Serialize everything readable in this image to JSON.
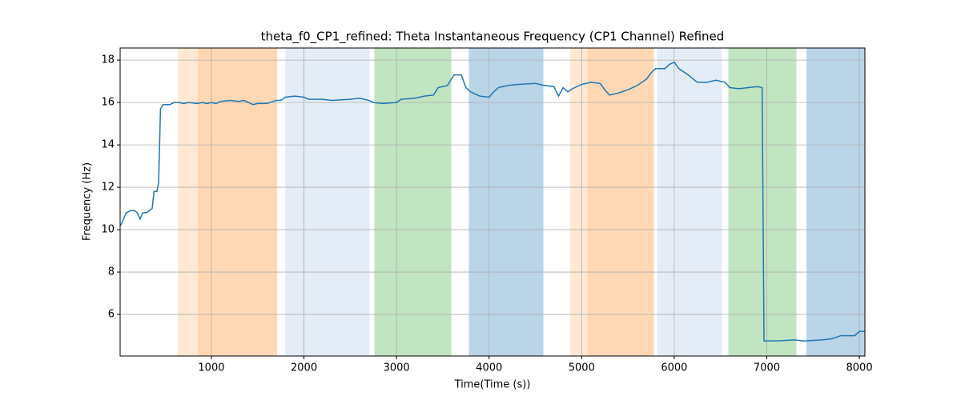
{
  "chart_data": {
    "type": "line",
    "title": "theta_f0_CP1_refined: Theta Instantaneous Frequency (CP1 Channel) Refined",
    "xlabel": "Time(Time (s))",
    "ylabel": "Frequency (Hz)",
    "xlim": [
      14,
      8060
    ],
    "ylim": [
      4.04,
      18.57
    ],
    "xticks": [
      1000,
      2000,
      3000,
      4000,
      5000,
      6000,
      7000,
      8000
    ],
    "yticks": [
      6,
      8,
      10,
      12,
      14,
      16,
      18
    ],
    "grid": true,
    "spans": [
      {
        "start": 637,
        "end": 853,
        "color": "#fee8d3"
      },
      {
        "start": 853,
        "end": 1710,
        "color": "#fed8b4"
      },
      {
        "start": 1800,
        "end": 2709,
        "color": "#e4ecf7"
      },
      {
        "start": 2761,
        "end": 3592,
        "color": "#c1e4c1"
      },
      {
        "start": 3782,
        "end": 4587,
        "color": "#bad4e8"
      },
      {
        "start": 4873,
        "end": 5062,
        "color": "#fee8d3"
      },
      {
        "start": 5062,
        "end": 5780,
        "color": "#fed8b4"
      },
      {
        "start": 5815,
        "end": 6516,
        "color": "#e4ecf7"
      },
      {
        "start": 6585,
        "end": 7320,
        "color": "#c1e4c1"
      },
      {
        "start": 7429,
        "end": 8060,
        "color": "#bad4e8"
      }
    ],
    "series": [
      {
        "name": "theta_f0_CP1_refined",
        "color": "#1f77b4",
        "x": [
          20,
          80,
          130,
          170,
          200,
          230,
          260,
          300,
          330,
          360,
          380,
          410,
          430,
          450,
          480,
          550,
          600,
          650,
          700,
          750,
          850,
          900,
          950,
          1000,
          1050,
          1100,
          1200,
          1300,
          1350,
          1400,
          1450,
          1500,
          1600,
          1700,
          1750,
          1800,
          1900,
          2000,
          2050,
          2200,
          2300,
          2500,
          2600,
          2700,
          2750,
          2850,
          3000,
          3050,
          3200,
          3300,
          3400,
          3450,
          3550,
          3620,
          3700,
          3750,
          3800,
          3900,
          4000,
          4050,
          4100,
          4200,
          4300,
          4500,
          4600,
          4700,
          4750,
          4800,
          4850,
          4900,
          5000,
          5100,
          5200,
          5250,
          5300,
          5400,
          5500,
          5600,
          5700,
          5750,
          5800,
          5900,
          5950,
          6000,
          6050,
          6150,
          6250,
          6350,
          6450,
          6550,
          6600,
          6700,
          6800,
          6900,
          6950,
          6970,
          7100,
          7300,
          7400,
          7600,
          7700,
          7800,
          7950,
          8000,
          8060
        ],
        "values": [
          10.2,
          10.8,
          10.9,
          10.9,
          10.8,
          10.5,
          10.8,
          10.8,
          10.9,
          11.0,
          11.8,
          11.8,
          12.2,
          15.7,
          15.9,
          15.9,
          16.0,
          16.0,
          15.95,
          16.0,
          15.95,
          16.0,
          15.95,
          16.0,
          15.95,
          16.05,
          16.1,
          16.05,
          16.1,
          16.0,
          15.9,
          15.95,
          15.95,
          16.1,
          16.1,
          16.25,
          16.3,
          16.25,
          16.15,
          16.15,
          16.1,
          16.15,
          16.2,
          16.1,
          16.0,
          15.95,
          16.0,
          16.15,
          16.2,
          16.3,
          16.35,
          16.7,
          16.8,
          17.3,
          17.3,
          16.7,
          16.5,
          16.3,
          16.25,
          16.5,
          16.7,
          16.8,
          16.85,
          16.9,
          16.8,
          16.75,
          16.3,
          16.7,
          16.5,
          16.65,
          16.85,
          16.95,
          16.9,
          16.6,
          16.35,
          16.45,
          16.6,
          16.8,
          17.1,
          17.4,
          17.6,
          17.6,
          17.8,
          17.9,
          17.6,
          17.3,
          16.95,
          16.95,
          17.05,
          16.95,
          16.7,
          16.65,
          16.7,
          16.75,
          16.7,
          4.75,
          4.75,
          4.8,
          4.75,
          4.8,
          4.85,
          5.0,
          5.0,
          5.2,
          5.2
        ]
      }
    ]
  }
}
